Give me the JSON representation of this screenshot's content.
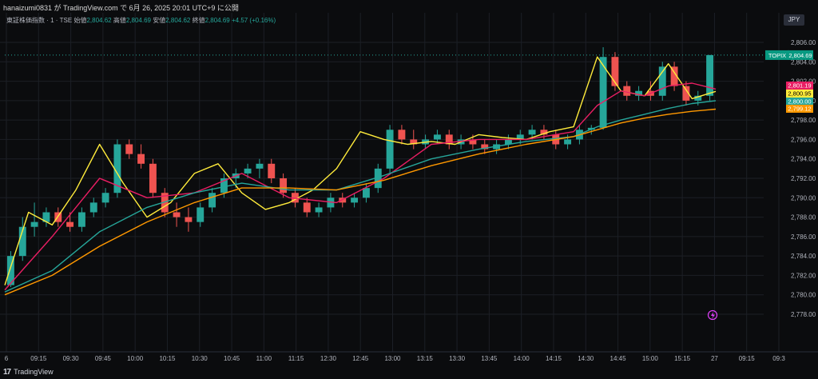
{
  "header": {
    "publisher_line": "hanaizumi0831 が TradingView.com で 6月 26, 2025 20:01 UTC+9 に公開"
  },
  "legend": {
    "symbol": "東証株価指数 · 1 · TSE",
    "open_label": "始値",
    "open": "2,804.62",
    "high_label": "高値",
    "high": "2,804.69",
    "low_label": "安値",
    "low": "2,804.62",
    "close_label": "終値",
    "close": "2,804.69",
    "change": "+4.57 (+0.16%)"
  },
  "currency_button": "JPY",
  "footer": {
    "brand": "TradingView",
    "logo_text": "17"
  },
  "price_badges": {
    "symbol_badge": {
      "label": "TOPIX",
      "value": "2,804.69",
      "color": "#089981"
    },
    "ma_badges": [
      {
        "value": "2,801.19",
        "color": "#e91e63"
      },
      {
        "value": "2,800.95",
        "color": "#ffeb3b"
      },
      {
        "value": "2,800.00",
        "color": "#26a69a"
      },
      {
        "value": "2,799.12",
        "color": "#ff9800"
      }
    ]
  },
  "colors": {
    "background": "#0b0c0e",
    "grid": "#1c1f26",
    "up_candle": "#26a69a",
    "down_candle": "#ef5350",
    "ma_fast": "#ffeb3b",
    "ma_mid": "#e91e63",
    "ma_slow": "#26a69a",
    "ma_slowest": "#ff9800",
    "lightning_marker": "#e040fb"
  },
  "icons": {
    "lightning_marker": "lightning-icon"
  },
  "chart_data": {
    "type": "line",
    "title": "",
    "xlabel": "",
    "ylabel": "",
    "ylim": [
      2776.6,
      2807.4
    ],
    "y_ticks": [
      2778,
      2780,
      2782,
      2784,
      2786,
      2788,
      2790,
      2792,
      2794,
      2796,
      2798,
      2800,
      2802,
      2804,
      2806
    ],
    "y_tick_labels": [
      "2,778.00",
      "2,780.00",
      "2,782.00",
      "2,784.00",
      "2,786.00",
      "2,788.00",
      "2,790.00",
      "2,792.00",
      "2,794.00",
      "2,796.00",
      "2,798.00",
      "2,800.00",
      "2,802.00",
      "2,804.00",
      "2,806.00"
    ],
    "x_tick_labels": [
      "6",
      "09:15",
      "09:30",
      "09:45",
      "10:00",
      "10:15",
      "10:30",
      "10:45",
      "11:00",
      "11:15",
      "12:30",
      "12:45",
      "13:00",
      "13:15",
      "13:30",
      "13:45",
      "14:00",
      "14:15",
      "14:30",
      "14:45",
      "15:00",
      "15:15",
      "27",
      "09:15",
      "09:3"
    ],
    "grid": true,
    "last_price": 2804.69,
    "series": [
      {
        "x": [
          0,
          12,
          24,
          36,
          48,
          60,
          72,
          84,
          96,
          108,
          120,
          132,
          144,
          156,
          168,
          180,
          192,
          204,
          216,
          228,
          240,
          252,
          264,
          276,
          288,
          300,
          312,
          324,
          336,
          348,
          360
        ],
        "values": [
          2781.0,
          2788.5,
          2787.2,
          2790.8,
          2795.5,
          2791.5,
          2788.0,
          2789.5,
          2792.5,
          2793.5,
          2790.5,
          2788.8,
          2789.5,
          2790.8,
          2793.0,
          2796.8,
          2796.0,
          2795.5,
          2795.8,
          2795.5,
          2796.5,
          2796.2,
          2796.0,
          2796.8,
          2797.3,
          2804.5,
          2801.0,
          2800.5,
          2803.8,
          2800.2,
          2800.95
        ]
      },
      {
        "x": [
          0,
          24,
          48,
          72,
          96,
          120,
          144,
          168,
          192,
          216,
          240,
          264,
          288,
          300,
          312,
          324,
          336,
          348,
          360
        ],
        "values": [
          2780.5,
          2786.0,
          2792.0,
          2790.0,
          2790.5,
          2792.5,
          2790.0,
          2789.5,
          2792.0,
          2795.5,
          2796.0,
          2796.0,
          2796.8,
          2799.5,
          2801.0,
          2800.5,
          2801.5,
          2801.8,
          2801.19
        ]
      },
      {
        "x": [
          0,
          24,
          48,
          72,
          96,
          120,
          144,
          168,
          192,
          216,
          240,
          264,
          288,
          300,
          312,
          324,
          336,
          348,
          360
        ],
        "values": [
          2780.3,
          2782.5,
          2786.5,
          2789.0,
          2790.5,
          2791.5,
          2790.8,
          2790.8,
          2792.3,
          2794.0,
          2795.0,
          2795.8,
          2796.3,
          2797.3,
          2798.0,
          2798.6,
          2799.2,
          2799.7,
          2800.0
        ]
      },
      {
        "x": [
          0,
          24,
          48,
          72,
          96,
          120,
          144,
          168,
          192,
          216,
          240,
          264,
          288,
          300,
          312,
          324,
          336,
          348,
          360
        ],
        "values": [
          2780.0,
          2782.0,
          2785.0,
          2787.5,
          2789.5,
          2791.0,
          2791.0,
          2790.8,
          2791.8,
          2793.3,
          2794.5,
          2795.5,
          2796.3,
          2797.0,
          2797.7,
          2798.2,
          2798.6,
          2798.9,
          2799.12
        ]
      }
    ],
    "candles": [
      [
        2781.0,
        2784.5,
        2780.8,
        2784.0
      ],
      [
        2784.0,
        2788.0,
        2783.5,
        2787.0
      ],
      [
        2787.0,
        2789.5,
        2786.0,
        2787.5
      ],
      [
        2787.5,
        2789.0,
        2787.0,
        2788.5
      ],
      [
        2788.5,
        2789.0,
        2787.0,
        2787.5
      ],
      [
        2787.5,
        2788.5,
        2786.5,
        2787.0
      ],
      [
        2787.0,
        2789.0,
        2786.5,
        2788.5
      ],
      [
        2788.5,
        2790.0,
        2788.0,
        2789.5
      ],
      [
        2789.5,
        2791.0,
        2789.0,
        2790.5
      ],
      [
        2790.5,
        2796.0,
        2790.0,
        2795.5
      ],
      [
        2795.5,
        2796.0,
        2794.0,
        2794.5
      ],
      [
        2794.5,
        2795.5,
        2793.0,
        2793.5
      ],
      [
        2793.5,
        2794.0,
        2790.0,
        2790.5
      ],
      [
        2790.5,
        2791.0,
        2788.0,
        2788.5
      ],
      [
        2788.5,
        2789.5,
        2787.0,
        2788.0
      ],
      [
        2788.0,
        2789.0,
        2786.5,
        2787.5
      ],
      [
        2787.5,
        2789.5,
        2787.0,
        2789.0
      ],
      [
        2789.0,
        2791.0,
        2788.5,
        2790.5
      ],
      [
        2790.5,
        2792.5,
        2790.0,
        2792.0
      ],
      [
        2792.0,
        2793.0,
        2791.0,
        2792.5
      ],
      [
        2792.5,
        2793.5,
        2792.0,
        2793.0
      ],
      [
        2793.0,
        2794.0,
        2792.0,
        2793.5
      ],
      [
        2793.5,
        2794.0,
        2791.5,
        2792.0
      ],
      [
        2792.0,
        2792.5,
        2790.0,
        2790.5
      ],
      [
        2790.5,
        2791.0,
        2789.0,
        2789.5
      ],
      [
        2789.5,
        2790.0,
        2788.0,
        2788.5
      ],
      [
        2788.5,
        2789.5,
        2788.0,
        2789.0
      ],
      [
        2789.0,
        2790.5,
        2788.5,
        2790.0
      ],
      [
        2790.0,
        2790.5,
        2789.0,
        2789.5
      ],
      [
        2789.5,
        2790.5,
        2789.0,
        2790.0
      ],
      [
        2790.0,
        2791.5,
        2789.5,
        2791.0
      ],
      [
        2791.0,
        2793.5,
        2790.5,
        2793.0
      ],
      [
        2793.0,
        2797.5,
        2792.5,
        2797.0
      ],
      [
        2797.0,
        2797.5,
        2795.5,
        2796.0
      ],
      [
        2796.0,
        2797.0,
        2795.0,
        2795.5
      ],
      [
        2795.5,
        2796.5,
        2795.0,
        2796.0
      ],
      [
        2796.0,
        2797.0,
        2795.5,
        2796.5
      ],
      [
        2796.5,
        2797.0,
        2795.0,
        2795.5
      ],
      [
        2795.5,
        2796.5,
        2795.0,
        2796.0
      ],
      [
        2796.0,
        2796.5,
        2795.0,
        2795.5
      ],
      [
        2795.5,
        2796.0,
        2794.5,
        2795.0
      ],
      [
        2795.0,
        2796.0,
        2794.5,
        2795.5
      ],
      [
        2795.5,
        2796.5,
        2795.0,
        2796.0
      ],
      [
        2796.0,
        2797.0,
        2795.5,
        2796.5
      ],
      [
        2796.5,
        2797.5,
        2796.0,
        2797.0
      ],
      [
        2797.0,
        2797.5,
        2796.0,
        2796.5
      ],
      [
        2796.5,
        2797.0,
        2795.0,
        2795.5
      ],
      [
        2795.5,
        2796.5,
        2795.0,
        2796.0
      ],
      [
        2796.0,
        2797.5,
        2795.5,
        2797.0
      ],
      [
        2797.0,
        2797.5,
        2796.5,
        2797.2
      ],
      [
        2797.2,
        2805.5,
        2797.0,
        2804.5
      ],
      [
        2804.5,
        2805.0,
        2801.0,
        2801.5
      ],
      [
        2801.5,
        2802.0,
        2800.0,
        2800.5
      ],
      [
        2800.5,
        2801.5,
        2800.0,
        2801.0
      ],
      [
        2801.0,
        2802.0,
        2800.0,
        2800.5
      ],
      [
        2800.5,
        2804.0,
        2800.0,
        2803.5
      ],
      [
        2803.5,
        2804.0,
        2801.0,
        2801.5
      ],
      [
        2801.5,
        2802.0,
        2799.5,
        2800.0
      ],
      [
        2800.0,
        2801.0,
        2799.5,
        2800.5
      ],
      [
        2800.5,
        2804.7,
        2800.0,
        2804.69
      ]
    ]
  }
}
